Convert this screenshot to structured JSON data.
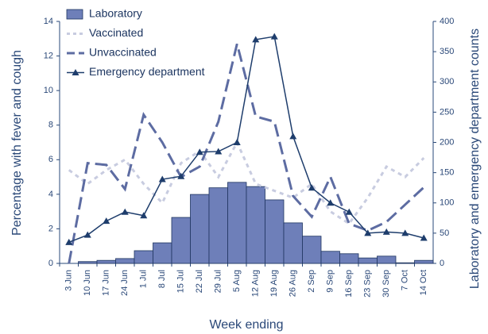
{
  "chart_data": {
    "type": "bar",
    "x_label": "Week ending",
    "y_label": "Percentage with fever and cough",
    "y2_label": "Laboratory and emergency department counts",
    "categories": [
      "3 Jun",
      "10 Jun",
      "17 Jun",
      "24 Jun",
      "1 Jul",
      "8 Jul",
      "15 Jul",
      "22 Jul",
      "29 Jul",
      "5 Aug",
      "12 Aug",
      "19 Aug",
      "26 Aug",
      "2 Sep",
      "9 Sep",
      "16 Sep",
      "23 Sep",
      "30 Sep",
      "7 Oct",
      "14 Oct"
    ],
    "ylim": [
      0,
      14
    ],
    "yticks": [
      0,
      2,
      4,
      6,
      8,
      10,
      12,
      14
    ],
    "y2lim": [
      0,
      400
    ],
    "y2ticks": [
      0,
      50,
      100,
      150,
      200,
      250,
      300,
      350,
      400
    ],
    "legend": "top-left",
    "series": [
      {
        "name": "Laboratory",
        "type": "bar",
        "axis": "y2",
        "color": "#6e7fb9",
        "values": [
          0,
          3,
          5,
          8,
          21,
          34,
          76,
          114,
          125,
          134,
          127,
          105,
          67,
          45,
          20,
          16,
          9,
          12,
          1,
          5
        ]
      },
      {
        "name": "Vaccinated",
        "type": "line",
        "linestyle": "dotted",
        "color": "#c8cce0",
        "values": [
          5.4,
          4.6,
          5.4,
          6.0,
          4.6,
          3.5,
          5.8,
          6.5,
          5.0,
          7.0,
          4.6,
          4.2,
          3.8,
          4.6,
          3.0,
          2.3,
          3.8,
          5.6,
          5.0,
          6.1
        ]
      },
      {
        "name": "Unvaccinated",
        "type": "line",
        "linestyle": "dashed",
        "color": "#5d6ca2",
        "values": [
          0,
          5.8,
          5.7,
          4.3,
          8.6,
          7.0,
          5.0,
          5.6,
          8.2,
          12.7,
          8.5,
          8.2,
          3.9,
          2.7,
          5.0,
          2.3,
          1.9,
          2.4,
          3.4,
          4.4
        ]
      },
      {
        "name": "Emergency department",
        "type": "line",
        "linestyle": "solid",
        "marker": "triangle",
        "axis": "y2",
        "color": "#1e3d6c",
        "values": [
          35,
          47,
          70,
          85,
          79,
          139,
          144,
          184,
          185,
          200,
          370,
          375,
          210,
          125,
          100,
          85,
          50,
          52,
          50,
          42
        ]
      }
    ]
  }
}
